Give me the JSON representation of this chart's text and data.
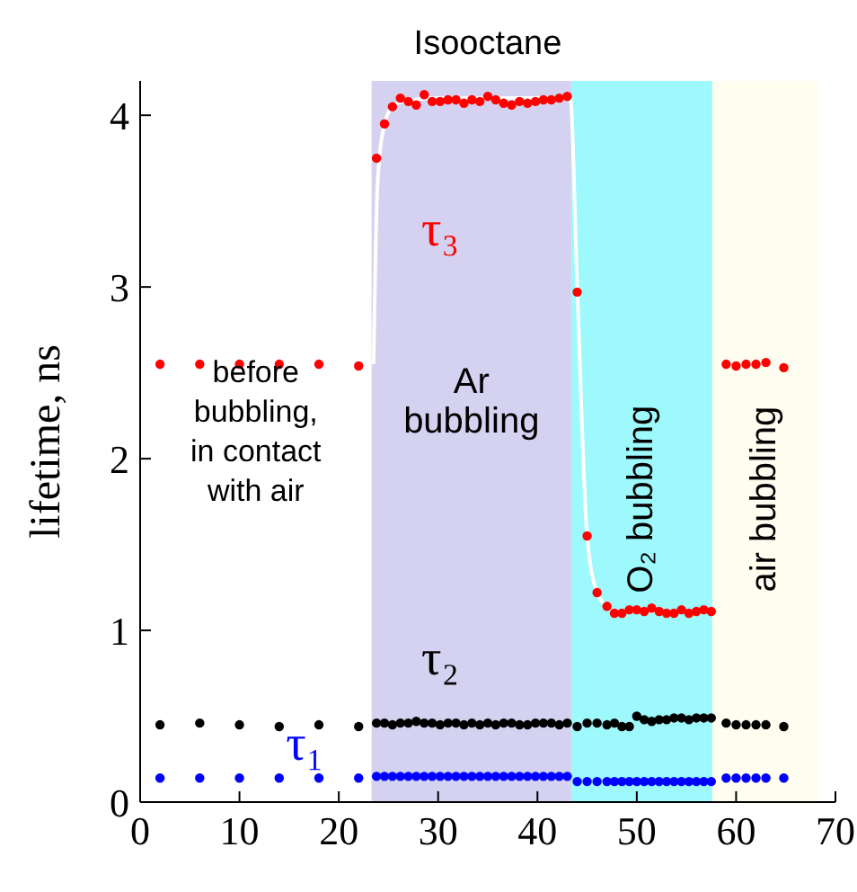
{
  "chart_data": {
    "type": "scatter",
    "title": "Isooctane",
    "ylabel": "lifetime, ns",
    "x": [
      2,
      6,
      10,
      14,
      18,
      22,
      23.8,
      24.6,
      25.4,
      26.2,
      27,
      27.8,
      28.6,
      29.4,
      30.2,
      31,
      31.8,
      32.6,
      33.4,
      34.2,
      35,
      35.8,
      36.6,
      37.4,
      38.2,
      39,
      39.8,
      40.6,
      41.4,
      42.2,
      43,
      44,
      45,
      46,
      47,
      47.75,
      48.5,
      49.25,
      50,
      50.75,
      51.5,
      52.25,
      53,
      53.75,
      54.5,
      55.25,
      56,
      56.75,
      57.5,
      59,
      60,
      61,
      62,
      63,
      64.8
    ],
    "series": [
      {
        "name": "τ₃",
        "color": "#ff0000",
        "values": [
          2.55,
          2.55,
          2.55,
          2.55,
          2.55,
          2.54,
          3.75,
          3.95,
          4.05,
          4.1,
          4.08,
          4.06,
          4.12,
          4.08,
          4.08,
          4.09,
          4.09,
          4.07,
          4.09,
          4.08,
          4.11,
          4.09,
          4.07,
          4.06,
          4.08,
          4.07,
          4.08,
          4.09,
          4.09,
          4.1,
          4.11,
          2.97,
          1.55,
          1.22,
          1.14,
          1.1,
          1.1,
          1.12,
          1.12,
          1.11,
          1.13,
          1.11,
          1.1,
          1.1,
          1.12,
          1.1,
          1.11,
          1.12,
          1.11,
          2.55,
          2.54,
          2.55,
          2.55,
          2.56,
          2.53
        ]
      },
      {
        "name": "τ₂",
        "color": "#000000",
        "values": [
          0.45,
          0.46,
          0.45,
          0.44,
          0.45,
          0.44,
          0.46,
          0.46,
          0.45,
          0.46,
          0.46,
          0.47,
          0.46,
          0.46,
          0.45,
          0.46,
          0.46,
          0.45,
          0.46,
          0.45,
          0.46,
          0.45,
          0.46,
          0.46,
          0.45,
          0.45,
          0.46,
          0.46,
          0.46,
          0.45,
          0.46,
          0.44,
          0.46,
          0.46,
          0.45,
          0.46,
          0.44,
          0.44,
          0.5,
          0.48,
          0.47,
          0.48,
          0.48,
          0.49,
          0.49,
          0.48,
          0.49,
          0.49,
          0.49,
          0.46,
          0.45,
          0.45,
          0.45,
          0.45,
          0.44
        ]
      },
      {
        "name": "τ₁",
        "color": "#0000ff",
        "values": [
          0.14,
          0.14,
          0.14,
          0.14,
          0.14,
          0.14,
          0.15,
          0.15,
          0.15,
          0.15,
          0.15,
          0.15,
          0.15,
          0.15,
          0.15,
          0.15,
          0.15,
          0.15,
          0.15,
          0.15,
          0.15,
          0.15,
          0.15,
          0.15,
          0.15,
          0.15,
          0.15,
          0.15,
          0.15,
          0.15,
          0.15,
          0.12,
          0.12,
          0.12,
          0.12,
          0.12,
          0.12,
          0.12,
          0.12,
          0.12,
          0.12,
          0.12,
          0.12,
          0.12,
          0.12,
          0.12,
          0.12,
          0.12,
          0.12,
          0.14,
          0.14,
          0.14,
          0.14,
          0.14,
          0.14
        ]
      },
      {
        "type": "line",
        "marker": "none",
        "color": "#ffffff",
        "x": [
          23.5,
          23.9,
          24.6,
          25.4,
          26.5,
          30,
          43.3,
          44,
          45,
          46,
          47,
          48,
          50,
          57.7
        ],
        "values": [
          2.55,
          3.6,
          3.95,
          4.05,
          4.08,
          4.1,
          4.1,
          3.0,
          1.55,
          1.22,
          1.14,
          1.11,
          1.11,
          1.11
        ]
      }
    ],
    "bands": [
      {
        "axis": "x",
        "from": 23.3,
        "to": 43.4,
        "label": "Ar bubbling",
        "color": "#d4d2f0"
      },
      {
        "axis": "x",
        "from": 43.4,
        "to": 57.6,
        "label": "O₂ bubbling",
        "color": "#9ef9fc"
      },
      {
        "axis": "x",
        "from": 57.6,
        "to": 68.2,
        "label": "air bubbling",
        "color": "#fffdf0"
      }
    ],
    "annotations": [
      "before bubbling, in contact with air"
    ],
    "xlim": [
      0,
      70
    ],
    "xticks": [
      0,
      10,
      20,
      30,
      40,
      50,
      60,
      70
    ],
    "ylim": [
      0,
      4.2
    ],
    "yticks": [
      0,
      1,
      2,
      3,
      4
    ],
    "marker": "circle",
    "legend": false,
    "grid": false
  }
}
